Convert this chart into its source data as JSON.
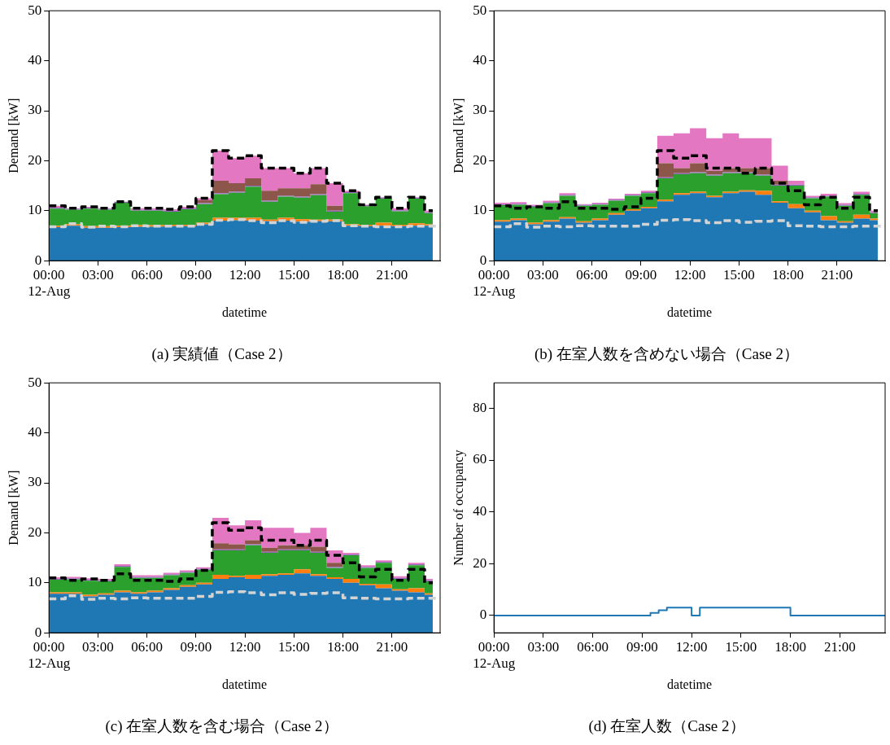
{
  "chart_data": [
    {
      "type": "area",
      "stacked": true,
      "title": "(a) 実績値（Case 2）",
      "xlabel": "datetime",
      "ylabel": "Demand [kW]",
      "xlim": [
        0,
        23.95
      ],
      "xticks": [
        {
          "value": 0,
          "label": "00:00\n12-Aug"
        },
        {
          "value": 3,
          "label": "03:00"
        },
        {
          "value": 6,
          "label": "06:00"
        },
        {
          "value": 9,
          "label": "09:00"
        },
        {
          "value": 12,
          "label": "12:00"
        },
        {
          "value": 15,
          "label": "15:00"
        },
        {
          "value": 18,
          "label": "18:00"
        },
        {
          "value": 21,
          "label": "21:00"
        }
      ],
      "ylim": [
        0,
        50
      ],
      "yticks": [
        0,
        10,
        20,
        30,
        40,
        50
      ],
      "legend": false,
      "grid": false,
      "x": [
        0,
        1,
        2,
        3,
        4,
        5,
        6,
        7,
        8,
        9,
        10,
        11,
        12,
        13,
        14,
        15,
        16,
        17,
        18,
        19,
        20,
        21,
        22,
        23,
        23.5
      ],
      "series": [
        {
          "color": "#1f77b4",
          "values": [
            6.7,
            7,
            6.6,
            6.6,
            6.7,
            6.8,
            6.8,
            6.9,
            6.9,
            7.3,
            8,
            8.1,
            8,
            7.9,
            8,
            7.8,
            7.9,
            7.9,
            7,
            6.9,
            7,
            6.9,
            7,
            7,
            7
          ]
        },
        {
          "color": "#ff7f0e",
          "values": [
            0.3,
            0.3,
            0.3,
            0.3,
            0.3,
            0.3,
            0.3,
            0.3,
            0.3,
            0.3,
            0.6,
            0.5,
            0.6,
            0.3,
            0.6,
            0.5,
            0.3,
            0.3,
            0.3,
            0.3,
            0.6,
            0.3,
            0.5,
            0.3,
            0.3
          ]
        },
        {
          "color": "#2ca02c",
          "values": [
            3.4,
            2.9,
            3.5,
            3.3,
            4.6,
            2.9,
            2.9,
            2.6,
            3.1,
            3.7,
            4.7,
            5,
            6.2,
            3.6,
            4.2,
            4.3,
            4.9,
            1.6,
            6.2,
            3.7,
            4.8,
            2.7,
            4.9,
            2.2,
            2.2
          ]
        },
        {
          "color": "#9467bd",
          "values": [
            0.2,
            0.2,
            0.2,
            0.2,
            0.2,
            0.2,
            0.2,
            0.2,
            0.2,
            0.2,
            0.2,
            0.2,
            0.2,
            0.2,
            0.2,
            0.2,
            0.2,
            0.2,
            0.2,
            0.2,
            0.2,
            0.2,
            0.2,
            0.2,
            0.2
          ]
        },
        {
          "color": "#8c564b",
          "values": [
            0,
            0,
            0,
            0,
            0,
            0,
            0,
            0,
            0,
            0.6,
            2.5,
            1.7,
            1.5,
            2,
            1.5,
            1.7,
            2,
            1,
            0,
            0,
            0,
            0,
            0,
            0,
            0
          ]
        },
        {
          "color": "#e377c2",
          "values": [
            0.4,
            0.1,
            0.2,
            0.1,
            0,
            0.3,
            0.3,
            0.3,
            0.3,
            0.4,
            6,
            5,
            4.5,
            4.5,
            4,
            3,
            3.2,
            4.5,
            0.3,
            0.1,
            0.1,
            0.4,
            0.1,
            0.3,
            0.3
          ]
        },
        {
          "type": "step",
          "line_style": "dashed",
          "color": "#000000",
          "values": [
            11,
            10.5,
            10.8,
            10.5,
            11.8,
            10.5,
            10.5,
            10.3,
            10.8,
            12.5,
            22,
            20.5,
            21,
            18.5,
            18.5,
            17.5,
            18.5,
            15.5,
            14,
            11.2,
            12.7,
            10.5,
            12.7,
            10,
            10
          ]
        },
        {
          "type": "step",
          "line_style": "dashed",
          "color": "#d3d3d3",
          "x": [
            0,
            1,
            2,
            3,
            4,
            5,
            6,
            7,
            8,
            9,
            10,
            11,
            12,
            13,
            14,
            15,
            16,
            17,
            18,
            19,
            20,
            21,
            22,
            23,
            23.95
          ],
          "values": [
            6.8,
            7.4,
            6.7,
            6.9,
            6.8,
            7,
            6.9,
            6.9,
            6.9,
            7.3,
            8.1,
            8.2,
            8,
            7.6,
            8,
            7.7,
            7.9,
            8,
            7,
            6.9,
            6.8,
            6.8,
            6.9,
            6.9,
            6.9
          ]
        }
      ]
    },
    {
      "type": "area",
      "stacked": true,
      "title": "(b) 在室人数を含めない場合（Case 2）",
      "xlabel": "datetime",
      "ylabel": "Demand [kW]",
      "xlim": [
        0,
        23.95
      ],
      "xticks": [
        {
          "value": 0,
          "label": "00:00\n12-Aug"
        },
        {
          "value": 3,
          "label": "03:00"
        },
        {
          "value": 6,
          "label": "06:00"
        },
        {
          "value": 9,
          "label": "09:00"
        },
        {
          "value": 12,
          "label": "12:00"
        },
        {
          "value": 15,
          "label": "15:00"
        },
        {
          "value": 18,
          "label": "18:00"
        },
        {
          "value": 21,
          "label": "21:00"
        }
      ],
      "ylim": [
        0,
        50
      ],
      "yticks": [
        0,
        10,
        20,
        30,
        40,
        50
      ],
      "legend": false,
      "grid": false,
      "x": [
        0,
        1,
        2,
        3,
        4,
        5,
        6,
        7,
        8,
        9,
        10,
        11,
        12,
        13,
        14,
        15,
        16,
        17,
        18,
        19,
        20,
        21,
        22,
        23,
        23.5
      ],
      "series": [
        {
          "color": "#1f77b4",
          "values": [
            7.8,
            8.1,
            7.3,
            7.8,
            8.4,
            7.6,
            8.1,
            9.2,
            10,
            10.5,
            11.9,
            13.2,
            13.5,
            12.7,
            13.5,
            13.8,
            13.2,
            11.6,
            10.5,
            9.7,
            8.1,
            7.6,
            8.4,
            8.1,
            8.1
          ]
        },
        {
          "color": "#ff7f0e",
          "values": [
            0.3,
            0.3,
            0.3,
            0.3,
            0.3,
            0.3,
            0.3,
            0.3,
            0.3,
            0.3,
            0.3,
            0.3,
            0.3,
            0.3,
            0.3,
            0.3,
            0.8,
            0.3,
            0.8,
            0.3,
            0.8,
            0.3,
            0.8,
            0.3,
            0.3
          ]
        },
        {
          "color": "#2ca02c",
          "values": [
            3,
            2.8,
            3.2,
            3.4,
            4.3,
            3.1,
            2.8,
            2.5,
            2.7,
            2.7,
            4.3,
            3.8,
            3.7,
            4,
            3.7,
            3.4,
            3,
            3.1,
            3.7,
            2.5,
            3.9,
            3.1,
            4,
            1.1,
            1.1
          ]
        },
        {
          "color": "#9467bd",
          "values": [
            0.2,
            0.2,
            0.2,
            0.2,
            0.2,
            0.2,
            0.2,
            0.2,
            0.2,
            0.2,
            0.2,
            0.2,
            0.2,
            0.2,
            0.2,
            0.2,
            0.2,
            0.2,
            0.2,
            0.2,
            0.2,
            0.2,
            0.2,
            0.2,
            0.2
          ]
        },
        {
          "color": "#8c564b",
          "values": [
            0,
            0,
            0,
            0,
            0,
            0,
            0,
            0,
            0,
            0,
            2.8,
            1,
            1.8,
            0.8,
            0.8,
            0.8,
            1.3,
            0.8,
            0,
            0,
            0,
            0,
            0,
            0,
            0
          ]
        },
        {
          "color": "#e377c2",
          "values": [
            0.3,
            0.3,
            0.2,
            0.3,
            0.3,
            0.1,
            0.2,
            0.2,
            0.2,
            0.3,
            5.5,
            7,
            7,
            6.5,
            7,
            6,
            6,
            3,
            0.8,
            0.3,
            0.4,
            0.3,
            0.4,
            0.3,
            0.3
          ]
        },
        {
          "type": "step",
          "line_style": "dashed",
          "color": "#000000",
          "values": [
            11,
            10.5,
            10.8,
            10.5,
            11.8,
            10.5,
            10.5,
            10.3,
            10.8,
            12.5,
            22,
            20.5,
            21,
            18.5,
            18.5,
            17.5,
            18.5,
            15.5,
            14,
            11.2,
            12.7,
            10.5,
            12.7,
            10,
            10
          ]
        },
        {
          "type": "step",
          "line_style": "dashed",
          "color": "#d3d3d3",
          "x": [
            0,
            1,
            2,
            3,
            4,
            5,
            6,
            7,
            8,
            9,
            10,
            11,
            12,
            13,
            14,
            15,
            16,
            17,
            18,
            19,
            20,
            21,
            22,
            23,
            23.95
          ],
          "values": [
            6.8,
            7.4,
            6.7,
            6.9,
            6.8,
            7,
            6.9,
            6.9,
            6.9,
            7.3,
            8.1,
            8.2,
            8,
            7.6,
            8,
            7.7,
            7.9,
            8,
            7,
            6.9,
            6.8,
            6.8,
            6.9,
            6.9,
            6.9
          ]
        }
      ]
    },
    {
      "type": "area",
      "stacked": true,
      "title": "(c) 在室人数を含む場合（Case 2）",
      "xlabel": "datetime",
      "ylabel": "Demand [kW]",
      "xlim": [
        0,
        23.95
      ],
      "xticks": [
        {
          "value": 0,
          "label": "00:00\n12-Aug"
        },
        {
          "value": 3,
          "label": "03:00"
        },
        {
          "value": 6,
          "label": "06:00"
        },
        {
          "value": 9,
          "label": "09:00"
        },
        {
          "value": 12,
          "label": "12:00"
        },
        {
          "value": 15,
          "label": "15:00"
        },
        {
          "value": 18,
          "label": "18:00"
        },
        {
          "value": 21,
          "label": "21:00"
        }
      ],
      "ylim": [
        0,
        50
      ],
      "yticks": [
        0,
        10,
        20,
        30,
        40,
        50
      ],
      "legend": false,
      "grid": false,
      "x": [
        0,
        1,
        2,
        3,
        4,
        5,
        6,
        7,
        8,
        9,
        10,
        11,
        12,
        13,
        14,
        15,
        16,
        17,
        18,
        19,
        20,
        21,
        22,
        23,
        23.5
      ],
      "series": [
        {
          "color": "#1f77b4",
          "values": [
            7.8,
            7.8,
            7.3,
            7.6,
            8.1,
            7.8,
            8.1,
            8.6,
            9.2,
            9.7,
            10.8,
            11.1,
            10.8,
            11.4,
            11.6,
            11.9,
            11.4,
            10.8,
            10,
            9.5,
            8.9,
            8.4,
            8.1,
            7.6,
            7.6
          ]
        },
        {
          "color": "#ff7f0e",
          "values": [
            0.3,
            0.3,
            0.3,
            0.3,
            0.3,
            0.3,
            0.3,
            0.3,
            0.3,
            0.3,
            0.8,
            0.3,
            0.8,
            0.3,
            0.3,
            0.8,
            0.3,
            0.3,
            0.8,
            0.3,
            0.8,
            0.3,
            0.8,
            0.3,
            0.3
          ]
        },
        {
          "color": "#2ca02c",
          "values": [
            2.5,
            2.6,
            2.8,
            2.4,
            4.8,
            2.9,
            2.6,
            2.6,
            2.5,
            2.6,
            4.9,
            5.1,
            5.9,
            4.3,
            4.6,
            3.8,
            4.3,
            1.9,
            4.7,
            3.2,
            4.3,
            2.1,
            4.6,
            2.4,
            2.4
          ]
        },
        {
          "color": "#9467bd",
          "values": [
            0.2,
            0.2,
            0.2,
            0.2,
            0.2,
            0.2,
            0.2,
            0.2,
            0.2,
            0.2,
            0.2,
            0.2,
            0.2,
            0.2,
            0.2,
            0.2,
            0.2,
            0.2,
            0.2,
            0.2,
            0.2,
            0.2,
            0.2,
            0.2,
            0.2
          ]
        },
        {
          "color": "#8c564b",
          "values": [
            0,
            0,
            0,
            0,
            0,
            0,
            0,
            0,
            0,
            0,
            1.2,
            1,
            0.8,
            0.8,
            0.8,
            0.8,
            1,
            0.8,
            0,
            0,
            0,
            0,
            0,
            0,
            0
          ]
        },
        {
          "color": "#e377c2",
          "values": [
            0.3,
            0.3,
            0.3,
            0.3,
            0.3,
            0.3,
            0.3,
            0.3,
            0.3,
            0.3,
            5.1,
            3.8,
            4,
            4,
            3.5,
            2.5,
            3.8,
            2.5,
            0.3,
            0.3,
            0.3,
            0.3,
            0.3,
            0.3,
            0.3
          ]
        },
        {
          "type": "step",
          "line_style": "dashed",
          "color": "#000000",
          "values": [
            11,
            10.5,
            10.8,
            10.5,
            11.8,
            10.5,
            10.5,
            10.3,
            10.8,
            12.5,
            22,
            20.5,
            21,
            18.5,
            18.5,
            17.5,
            18.5,
            15.5,
            14,
            11.2,
            12.7,
            10.5,
            12.7,
            10,
            10
          ]
        },
        {
          "type": "step",
          "line_style": "dashed",
          "color": "#d3d3d3",
          "x": [
            0,
            1,
            2,
            3,
            4,
            5,
            6,
            7,
            8,
            9,
            10,
            11,
            12,
            13,
            14,
            15,
            16,
            17,
            18,
            19,
            20,
            21,
            22,
            23,
            23.95
          ],
          "values": [
            6.8,
            7.4,
            6.7,
            6.9,
            6.8,
            7,
            6.9,
            6.9,
            6.9,
            7.3,
            8.1,
            8.2,
            8,
            7.6,
            8,
            7.7,
            7.9,
            8,
            7,
            6.9,
            6.8,
            6.8,
            6.9,
            6.9,
            6.9
          ]
        }
      ]
    },
    {
      "type": "step",
      "title": "(d) 在室人数（Case 2）",
      "xlabel": "datetime",
      "ylabel": "Number of occupancy",
      "xlim": [
        0,
        23.75
      ],
      "xticks": [
        {
          "value": 0,
          "label": "00:00\n12-Aug"
        },
        {
          "value": 3,
          "label": "03:00"
        },
        {
          "value": 6,
          "label": "06:00"
        },
        {
          "value": 9,
          "label": "09:00"
        },
        {
          "value": 12,
          "label": "12:00"
        },
        {
          "value": 15,
          "label": "15:00"
        },
        {
          "value": 18,
          "label": "18:00"
        },
        {
          "value": 21,
          "label": "21:00"
        }
      ],
      "ylim": [
        -6.7,
        89.8
      ],
      "yticks": [
        0,
        20,
        40,
        60,
        80
      ],
      "legend": false,
      "grid": false,
      "x": [
        0,
        9.5,
        10,
        10.5,
        12,
        12.5,
        18,
        23.75
      ],
      "color": "#1f77b4",
      "values": [
        0,
        1,
        2,
        3,
        0,
        3,
        0,
        0
      ]
    }
  ]
}
